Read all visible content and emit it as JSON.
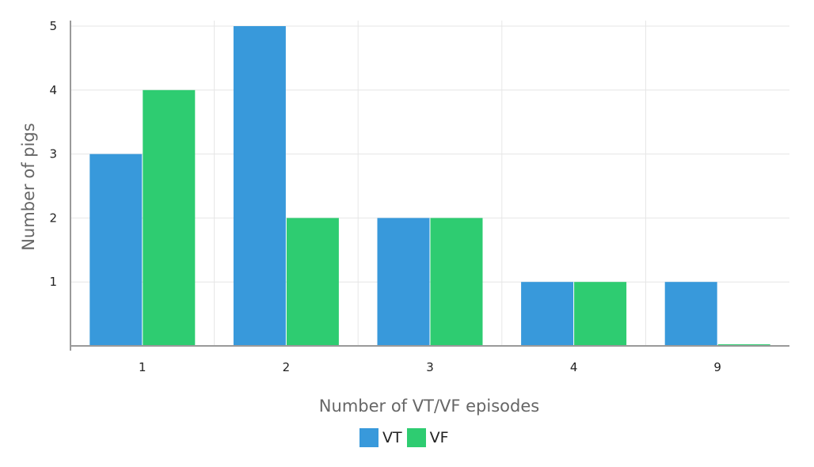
{
  "chart_data": {
    "type": "bar",
    "categories": [
      "1",
      "2",
      "3",
      "4",
      "9"
    ],
    "series": [
      {
        "name": "VT",
        "values": [
          3,
          5,
          2,
          1,
          1
        ],
        "color": "#3899db"
      },
      {
        "name": "VF",
        "values": [
          4,
          2,
          2,
          1,
          0
        ],
        "color": "#2ecc71"
      }
    ],
    "yticks": [
      "1",
      "2",
      "3",
      "4",
      "5"
    ],
    "xlabel": "Number of VT/VF episodes",
    "ylabel": "Number of pigs",
    "ylim": [
      0,
      5
    ],
    "grid": true,
    "legend_position": "bottom-center"
  }
}
